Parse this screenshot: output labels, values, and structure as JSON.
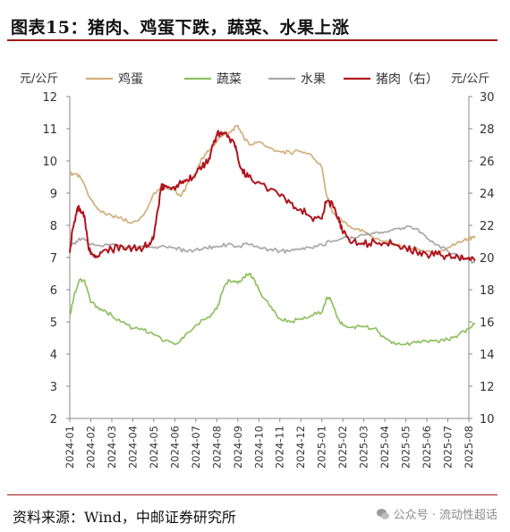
{
  "figure": {
    "title": "图表15：猪肉、鸡蛋下跌，蔬菜、水果上涨",
    "source": "资料来源：Wind，中邮证券研究所",
    "watermark": "公众号 · 流动性超话"
  },
  "chart_data": {
    "type": "line",
    "left_unit": "元/公斤",
    "right_unit": "元/公斤",
    "y_left_range": [
      2,
      12
    ],
    "y_left_ticks": [
      "2",
      "3",
      "4",
      "5",
      "6",
      "7",
      "8",
      "9",
      "10",
      "11",
      "12"
    ],
    "y_right_range": [
      10,
      30
    ],
    "y_right_ticks": [
      "10",
      "12",
      "14",
      "16",
      "18",
      "20",
      "22",
      "24",
      "26",
      "28",
      "30"
    ],
    "x_ticks": [
      "2024-01",
      "2024-02",
      "2024-03",
      "2024-04",
      "2024-05",
      "2024-06",
      "2024-07",
      "2024-08",
      "2024-09",
      "2024-10",
      "2024-11",
      "2024-12",
      "2025-01",
      "2025-02",
      "2025-03",
      "2025-04",
      "2025-05",
      "2025-06",
      "2025-07",
      "2025-08"
    ],
    "legend_position": "top",
    "series": [
      {
        "name": "鸡蛋",
        "axis": "left",
        "color": "#d2b07e",
        "x": [
          0,
          0.3,
          0.6,
          1.0,
          1.5,
          2.0,
          2.5,
          3.0,
          3.5,
          4.0,
          4.5,
          5.0,
          5.3,
          5.6,
          6.0,
          6.3,
          6.6,
          7.0,
          7.3,
          7.6,
          8.0,
          8.3,
          8.6,
          9.0,
          9.5,
          10.0,
          10.5,
          11.0,
          11.5,
          12.0,
          12.2,
          12.5,
          13.0,
          13.5,
          14.0,
          14.5,
          15.0,
          15.5,
          16.0,
          16.5,
          17.0,
          17.5,
          18.0,
          18.5,
          19.0,
          19.3
        ],
        "y": [
          9.6,
          9.6,
          9.4,
          8.8,
          8.4,
          8.3,
          8.2,
          8.1,
          8.3,
          9.0,
          9.2,
          9.1,
          8.9,
          9.3,
          9.6,
          10.1,
          10.3,
          10.6,
          10.8,
          10.9,
          11.1,
          10.7,
          10.5,
          10.6,
          10.4,
          10.3,
          10.25,
          10.3,
          10.2,
          9.8,
          9.0,
          8.4,
          8.1,
          7.9,
          7.8,
          7.6,
          7.5,
          7.4,
          7.3,
          7.3,
          7.2,
          7.1,
          7.3,
          7.5,
          7.6,
          7.6
        ]
      },
      {
        "name": "蔬菜",
        "axis": "left",
        "color": "#8fc060",
        "x": [
          0,
          0.2,
          0.45,
          0.7,
          1.0,
          1.5,
          2.0,
          2.5,
          3.0,
          3.5,
          4.0,
          4.5,
          5.0,
          5.5,
          6.0,
          6.5,
          7.0,
          7.3,
          7.6,
          8.0,
          8.3,
          8.6,
          9.0,
          9.5,
          10.0,
          10.5,
          11.0,
          11.5,
          12.0,
          12.2,
          12.4,
          12.7,
          13.0,
          13.5,
          14.0,
          14.5,
          15.0,
          15.5,
          16.0,
          16.5,
          17.0,
          17.5,
          18.0,
          18.5,
          19.0,
          19.3
        ],
        "y": [
          5.2,
          5.8,
          6.3,
          6.3,
          5.6,
          5.4,
          5.2,
          5.0,
          4.8,
          4.75,
          4.6,
          4.4,
          4.3,
          4.6,
          4.9,
          5.1,
          5.4,
          6.0,
          6.3,
          6.2,
          6.4,
          6.5,
          6.0,
          5.5,
          5.1,
          5.0,
          5.1,
          5.2,
          5.3,
          5.7,
          5.75,
          5.2,
          4.9,
          4.85,
          4.85,
          4.8,
          4.5,
          4.3,
          4.3,
          4.35,
          4.4,
          4.4,
          4.45,
          4.6,
          4.8,
          4.95
        ]
      },
      {
        "name": "水果",
        "axis": "left",
        "color": "#a8a8a8",
        "x": [
          0,
          0.3,
          0.6,
          1.0,
          1.5,
          2.0,
          2.5,
          3.0,
          3.5,
          4.0,
          4.5,
          5.0,
          5.5,
          6.0,
          6.5,
          7.0,
          7.5,
          8.0,
          8.5,
          9.0,
          9.5,
          10.0,
          10.5,
          11.0,
          11.5,
          12.0,
          12.5,
          13.0,
          13.5,
          14.0,
          14.5,
          15.0,
          15.5,
          16.0,
          16.5,
          17.0,
          17.5,
          18.0,
          18.5,
          19.0,
          19.3
        ],
        "y": [
          7.3,
          7.5,
          7.6,
          7.4,
          7.35,
          7.4,
          7.35,
          7.3,
          7.35,
          7.3,
          7.35,
          7.3,
          7.2,
          7.25,
          7.3,
          7.35,
          7.4,
          7.35,
          7.4,
          7.3,
          7.25,
          7.2,
          7.2,
          7.25,
          7.3,
          7.4,
          7.5,
          7.6,
          7.6,
          7.7,
          7.75,
          7.8,
          7.9,
          7.95,
          7.9,
          7.6,
          7.4,
          7.2,
          7.05,
          6.9,
          6.85
        ]
      },
      {
        "name": "猪肉（右）",
        "axis": "right",
        "color": "#b0141e",
        "x": [
          0,
          0.15,
          0.35,
          0.5,
          0.7,
          0.9,
          1.0,
          1.2,
          1.5,
          2.0,
          2.5,
          3.0,
          3.5,
          3.8,
          4.0,
          4.2,
          4.35,
          4.5,
          4.8,
          5.0,
          5.3,
          5.6,
          6.0,
          6.3,
          6.6,
          6.8,
          7.0,
          7.2,
          7.5,
          7.8,
          8.0,
          8.2,
          8.5,
          9.0,
          9.5,
          10.0,
          10.5,
          11.0,
          11.5,
          12.0,
          12.2,
          12.5,
          12.8,
          13.0,
          13.5,
          14.0,
          14.5,
          15.0,
          15.5,
          16.0,
          16.5,
          17.0,
          17.5,
          18.0,
          18.5,
          19.0,
          19.3
        ],
        "y": [
          20.3,
          21.8,
          23.0,
          23.0,
          22.6,
          20.5,
          20.2,
          20.0,
          20.3,
          20.5,
          20.7,
          20.6,
          20.6,
          20.9,
          21.3,
          23.0,
          24.3,
          24.5,
          24.3,
          24.2,
          24.6,
          24.8,
          25.2,
          25.6,
          26.0,
          27.0,
          27.6,
          27.8,
          27.5,
          27.2,
          26.2,
          25.5,
          25.0,
          24.7,
          24.2,
          23.8,
          23.4,
          23.0,
          22.5,
          22.4,
          23.4,
          23.4,
          22.5,
          21.5,
          21.0,
          20.8,
          21.0,
          20.9,
          20.8,
          20.6,
          20.4,
          20.2,
          20.2,
          20.1,
          20.0,
          20.0,
          19.8
        ]
      }
    ]
  }
}
